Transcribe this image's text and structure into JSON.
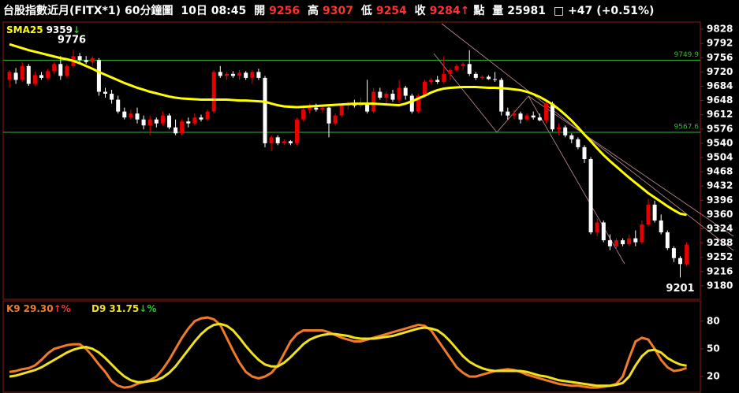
{
  "header": {
    "symbol": "台股指數近月(FITX*1)",
    "period": "60分鐘圖",
    "time": "10日 08:45",
    "open_label": "開",
    "open": "9256",
    "high_label": "高",
    "high": "9307",
    "low_label": "低",
    "low": "9254",
    "close_label": "收",
    "close": "9284",
    "close_arrow": "↑",
    "unit": "點",
    "volume_label": "量",
    "volume": "25981",
    "box": "□",
    "change": "+47",
    "change_pct": "(+0.51%)"
  },
  "chart_data": [
    {
      "type": "candlestick",
      "up_color": "#e80000",
      "down_color": "#ffffff",
      "ylim": [
        9146,
        9846
      ],
      "yticks": [
        9828,
        9792,
        9756,
        9720,
        9684,
        9648,
        9612,
        9576,
        9540,
        9504,
        9468,
        9432,
        9396,
        9360,
        9324,
        9288,
        9252,
        9216,
        9180
      ],
      "ohlc": [
        [
          9700,
          9725,
          9680,
          9720
        ],
        [
          9718,
          9730,
          9690,
          9700
        ],
        [
          9700,
          9745,
          9695,
          9735
        ],
        [
          9735,
          9740,
          9685,
          9690
        ],
        [
          9690,
          9720,
          9685,
          9712
        ],
        [
          9712,
          9720,
          9700,
          9705
        ],
        [
          9705,
          9728,
          9700,
          9722
        ],
        [
          9722,
          9745,
          9715,
          9740
        ],
        [
          9740,
          9760,
          9700,
          9710
        ],
        [
          9710,
          9740,
          9705,
          9735
        ],
        [
          9735,
          9776,
          9730,
          9760
        ],
        [
          9760,
          9768,
          9745,
          9750
        ],
        [
          9750,
          9760,
          9740,
          9745
        ],
        [
          9745,
          9760,
          9735,
          9755
        ],
        [
          9750,
          9755,
          9660,
          9670
        ],
        [
          9670,
          9680,
          9655,
          9665
        ],
        [
          9665,
          9675,
          9640,
          9650
        ],
        [
          9650,
          9660,
          9615,
          9620
        ],
        [
          9620,
          9630,
          9600,
          9605
        ],
        [
          9605,
          9625,
          9600,
          9615
        ],
        [
          9615,
          9630,
          9590,
          9600
        ],
        [
          9600,
          9610,
          9575,
          9585
        ],
        [
          9585,
          9610,
          9560,
          9600
        ],
        [
          9600,
          9605,
          9580,
          9590
        ],
        [
          9590,
          9620,
          9585,
          9610
        ],
        [
          9610,
          9615,
          9575,
          9580
        ],
        [
          9580,
          9600,
          9560,
          9565
        ],
        [
          9565,
          9600,
          9560,
          9595
        ],
        [
          9595,
          9605,
          9580,
          9590
        ],
        [
          9590,
          9615,
          9585,
          9605
        ],
        [
          9605,
          9612,
          9595,
          9600
        ],
        [
          9600,
          9625,
          9595,
          9620
        ],
        [
          9620,
          9725,
          9615,
          9720
        ],
        [
          9720,
          9735,
          9705,
          9710
        ],
        [
          9710,
          9720,
          9700,
          9715
        ],
        [
          9715,
          9722,
          9705,
          9710
        ],
        [
          9710,
          9725,
          9700,
          9718
        ],
        [
          9718,
          9722,
          9700,
          9705
        ],
        [
          9705,
          9725,
          9690,
          9720
        ],
        [
          9720,
          9728,
          9700,
          9705
        ],
        [
          9705,
          9710,
          9530,
          9540
        ],
        [
          9540,
          9560,
          9520,
          9555
        ],
        [
          9555,
          9560,
          9535,
          9540
        ],
        [
          9540,
          9550,
          9535,
          9545
        ],
        [
          9545,
          9548,
          9535,
          9540
        ],
        [
          9540,
          9605,
          9535,
          9600
        ],
        [
          9600,
          9635,
          9595,
          9625
        ],
        [
          9625,
          9640,
          9615,
          9630
        ],
        [
          9630,
          9640,
          9620,
          9625
        ],
        [
          9625,
          9635,
          9618,
          9630
        ],
        [
          9630,
          9632,
          9555,
          9590
        ],
        [
          9590,
          9615,
          9585,
          9610
        ],
        [
          9610,
          9640,
          9605,
          9635
        ],
        [
          9635,
          9645,
          9625,
          9640
        ],
        [
          9640,
          9650,
          9630,
          9635
        ],
        [
          9635,
          9655,
          9630,
          9640
        ],
        [
          9640,
          9700,
          9615,
          9620
        ],
        [
          9620,
          9680,
          9615,
          9670
        ],
        [
          9670,
          9680,
          9650,
          9655
        ],
        [
          9655,
          9670,
          9640,
          9665
        ],
        [
          9665,
          9675,
          9645,
          9650
        ],
        [
          9650,
          9700,
          9640,
          9680
        ],
        [
          9680,
          9685,
          9650,
          9660
        ],
        [
          9660,
          9665,
          9615,
          9620
        ],
        [
          9620,
          9665,
          9615,
          9660
        ],
        [
          9660,
          9700,
          9655,
          9695
        ],
        [
          9695,
          9705,
          9690,
          9700
        ],
        [
          9700,
          9710,
          9690,
          9695
        ],
        [
          9695,
          9760,
          9690,
          9715
        ],
        [
          9715,
          9730,
          9700,
          9725
        ],
        [
          9725,
          9740,
          9720,
          9735
        ],
        [
          9735,
          9745,
          9725,
          9740
        ],
        [
          9740,
          9775,
          9710,
          9715
        ],
        [
          9715,
          9720,
          9700,
          9705
        ],
        [
          9705,
          9712,
          9700,
          9708
        ],
        [
          9708,
          9712,
          9700,
          9702
        ],
        [
          9702,
          9720,
          9695,
          9700
        ],
        [
          9700,
          9705,
          9610,
          9620
        ],
        [
          9620,
          9630,
          9600,
          9610
        ],
        [
          9610,
          9625,
          9600,
          9615
        ],
        [
          9615,
          9620,
          9590,
          9600
        ],
        [
          9600,
          9615,
          9595,
          9610
        ],
        [
          9610,
          9620,
          9600,
          9605
        ],
        [
          9605,
          9615,
          9595,
          9598
        ],
        [
          9598,
          9650,
          9590,
          9640
        ],
        [
          9640,
          9645,
          9570,
          9575
        ],
        [
          9575,
          9590,
          9560,
          9580
        ],
        [
          9580,
          9585,
          9555,
          9560
        ],
        [
          9560,
          9565,
          9540,
          9550
        ],
        [
          9550,
          9555,
          9525,
          9530
        ],
        [
          9530,
          9535,
          9490,
          9500
        ],
        [
          9500,
          9505,
          9310,
          9315
        ],
        [
          9315,
          9350,
          9305,
          9340
        ],
        [
          9340,
          9345,
          9290,
          9295
        ],
        [
          9295,
          9310,
          9270,
          9280
        ],
        [
          9280,
          9300,
          9270,
          9295
        ],
        [
          9295,
          9300,
          9280,
          9285
        ],
        [
          9285,
          9310,
          9280,
          9300
        ],
        [
          9300,
          9320,
          9280,
          9290
        ],
        [
          9290,
          9345,
          9285,
          9335
        ],
        [
          9335,
          9400,
          9330,
          9385
        ],
        [
          9385,
          9395,
          9340,
          9345
        ],
        [
          9345,
          9360,
          9310,
          9315
        ],
        [
          9315,
          9320,
          9270,
          9275
        ],
        [
          9275,
          9280,
          9240,
          9250
        ],
        [
          9250,
          9255,
          9201,
          9235
        ],
        [
          9235,
          9290,
          9230,
          9284
        ]
      ],
      "series": [
        {
          "name": "SMA25",
          "readout": "9359",
          "trend": "↓",
          "color": "#ffff00",
          "values": [
            9790,
            9785,
            9780,
            9775,
            9771,
            9767,
            9763,
            9759,
            9755,
            9752,
            9748,
            9742,
            9735,
            9728,
            9720,
            9713,
            9706,
            9699,
            9692,
            9686,
            9680,
            9675,
            9670,
            9666,
            9662,
            9658,
            9655,
            9653,
            9652,
            9651,
            9650,
            9650,
            9650,
            9650,
            9650,
            9649,
            9648,
            9648,
            9647,
            9646,
            9645,
            9640,
            9636,
            9633,
            9632,
            9631,
            9632,
            9633,
            9634,
            9635,
            9636,
            9637,
            9638,
            9639,
            9640,
            9640,
            9640,
            9640,
            9639,
            9638,
            9637,
            9636,
            9640,
            9646,
            9653,
            9660,
            9668,
            9674,
            9678,
            9680,
            9681,
            9682,
            9682,
            9682,
            9681,
            9680,
            9680,
            9679,
            9678,
            9676,
            9674,
            9670,
            9664,
            9657,
            9648,
            9638,
            9626,
            9612,
            9597,
            9580,
            9562,
            9545,
            9527,
            9510,
            9495,
            9481,
            9467,
            9453,
            9440,
            9427,
            9414,
            9403,
            9392,
            9381,
            9371,
            9362,
            9359
          ]
        }
      ],
      "hlines": [
        {
          "value": 9749.9,
          "label": "9749.9",
          "color": "#33bb33"
        },
        {
          "value": 9567.6,
          "label": "9567.6",
          "color": "#33bb33"
        }
      ],
      "annotations": [
        "9776",
        "9201"
      ]
    },
    {
      "type": "line",
      "ylim": [
        3,
        102
      ],
      "yticks": [
        80,
        50,
        20
      ],
      "series": [
        {
          "name": "K9",
          "readout": "29.30",
          "trend": "↑%",
          "color": "#f07a2a",
          "values": [
            25,
            26,
            28,
            29,
            32,
            38,
            45,
            50,
            52,
            54,
            55,
            55,
            50,
            42,
            33,
            25,
            15,
            10,
            8,
            9,
            12,
            14,
            16,
            20,
            28,
            38,
            50,
            62,
            72,
            80,
            83,
            84,
            82,
            76,
            62,
            48,
            35,
            25,
            20,
            18,
            20,
            24,
            32,
            45,
            58,
            66,
            70,
            70,
            70,
            70,
            68,
            65,
            62,
            60,
            58,
            58,
            60,
            62,
            64,
            66,
            68,
            70,
            72,
            74,
            76,
            75,
            70,
            60,
            50,
            40,
            30,
            24,
            20,
            20,
            22,
            24,
            26,
            27,
            28,
            27,
            25,
            22,
            20,
            18,
            16,
            14,
            12,
            11,
            10,
            10,
            9,
            8,
            8,
            9,
            10,
            12,
            20,
            40,
            58,
            62,
            60,
            50,
            38,
            30,
            26,
            27,
            29.3
          ]
        },
        {
          "name": "D9",
          "readout": "31.75",
          "trend": "↓%",
          "color": "#f0e020",
          "values": [
            20,
            21,
            23,
            25,
            27,
            30,
            34,
            38,
            42,
            46,
            49,
            51,
            52,
            50,
            46,
            40,
            33,
            26,
            20,
            16,
            14,
            14,
            15,
            16,
            19,
            24,
            31,
            40,
            49,
            58,
            66,
            72,
            76,
            77,
            75,
            70,
            62,
            53,
            45,
            38,
            33,
            31,
            31,
            35,
            41,
            48,
            55,
            60,
            63,
            65,
            66,
            66,
            65,
            64,
            62,
            61,
            61,
            61,
            62,
            63,
            64,
            66,
            68,
            70,
            72,
            73,
            72,
            70,
            65,
            58,
            50,
            42,
            36,
            32,
            29,
            27,
            26,
            26,
            26,
            26,
            26,
            25,
            23,
            21,
            20,
            18,
            16,
            15,
            14,
            13,
            12,
            11,
            10,
            10,
            10,
            11,
            13,
            20,
            32,
            42,
            48,
            49,
            46,
            40,
            36,
            33,
            31.75
          ]
        }
      ]
    }
  ]
}
